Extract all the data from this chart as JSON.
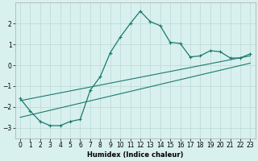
{
  "xlabel": "Humidex (Indice chaleur)",
  "ylabel": "",
  "bg_color": "#d8f0ee",
  "line_color": "#1a7a6e",
  "grid_color": "#c0dcd8",
  "xlim": [
    -0.5,
    23.5
  ],
  "ylim": [
    -3.5,
    3.0
  ],
  "xticks": [
    0,
    1,
    2,
    3,
    4,
    5,
    6,
    7,
    8,
    9,
    10,
    11,
    12,
    13,
    14,
    15,
    16,
    17,
    18,
    19,
    20,
    21,
    22,
    23
  ],
  "yticks": [
    -3,
    -2,
    -1,
    0,
    1,
    2
  ],
  "main_x": [
    0,
    1,
    2,
    3,
    4,
    5,
    6,
    7,
    8,
    9,
    10,
    11,
    12,
    13,
    14,
    15,
    16,
    17,
    18,
    19,
    20,
    21,
    22,
    23
  ],
  "main_y": [
    -1.6,
    -2.2,
    -2.7,
    -2.9,
    -2.9,
    -2.7,
    -2.6,
    -1.2,
    -0.55,
    0.6,
    1.35,
    2.0,
    2.6,
    2.1,
    1.9,
    1.1,
    1.05,
    0.4,
    0.45,
    0.7,
    0.65,
    0.35,
    0.35,
    0.55
  ],
  "line1_x": [
    0,
    23
  ],
  "line1_y": [
    -1.7,
    0.45
  ],
  "line2_x": [
    0,
    23
  ],
  "line2_y": [
    -2.5,
    0.1
  ]
}
